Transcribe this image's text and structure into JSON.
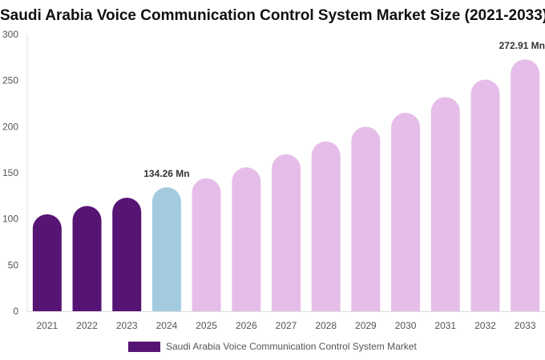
{
  "chart_data": {
    "type": "bar",
    "title": "Saudi Arabia Voice Communication Control System Market Size (2021-2033)",
    "categories": [
      "2021",
      "2022",
      "2023",
      "2024",
      "2025",
      "2026",
      "2027",
      "2028",
      "2029",
      "2030",
      "2031",
      "2032",
      "2033"
    ],
    "series": [
      {
        "name": "Saudi Arabia Voice Communication Control System Market",
        "values": [
          105,
          114,
          123,
          134.26,
          144,
          156,
          170,
          184,
          200,
          215,
          232,
          251,
          272.91
        ]
      }
    ],
    "ylim": [
      0,
      300
    ],
    "yticks": [
      0,
      50,
      100,
      150,
      200,
      250,
      300
    ],
    "annotations": [
      {
        "category": "2024",
        "text": "134.26 Mn"
      },
      {
        "category": "2033",
        "text": "272.91 Mn"
      }
    ],
    "colors": {
      "historical": "#561474",
      "base_year": "#a3cbdf",
      "forecast": "#e6bde8"
    },
    "bar_color_groups": [
      "historical",
      "historical",
      "historical",
      "base_year",
      "forecast",
      "forecast",
      "forecast",
      "forecast",
      "forecast",
      "forecast",
      "forecast",
      "forecast",
      "forecast"
    ],
    "grid": false,
    "legend": {
      "position": "bottom",
      "color": "#561474"
    }
  }
}
